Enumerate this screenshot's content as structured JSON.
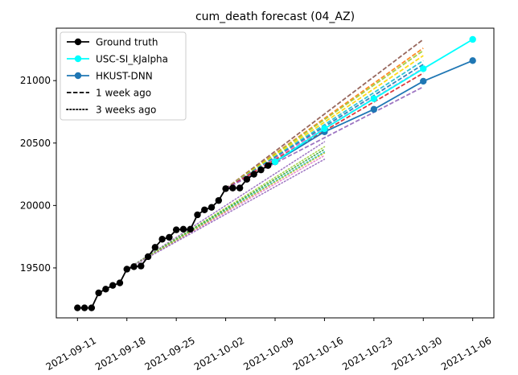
{
  "chart_data": {
    "type": "line",
    "title": "cum_death forecast (04_AZ)",
    "xlabel": "",
    "ylabel": "",
    "x_ticks": [
      "2021-09-11",
      "2021-09-18",
      "2021-09-25",
      "2021-10-02",
      "2021-10-09",
      "2021-10-16",
      "2021-10-23",
      "2021-10-30",
      "2021-11-06"
    ],
    "y_ticks": [
      19500,
      20000,
      20500,
      21000
    ],
    "xlim": [
      "2021-09-08",
      "2021-11-09"
    ],
    "ylim": [
      19100,
      21420
    ],
    "grid": false,
    "legend_placement": "top-left",
    "legend": [
      {
        "label": "Ground truth",
        "style": "solid-marker",
        "color": "#000000"
      },
      {
        "label": "USC-SI_kJalpha",
        "style": "solid-marker",
        "color": "#00ffff"
      },
      {
        "label": "HKUST-DNN",
        "style": "solid-marker",
        "color": "#1f77b4"
      },
      {
        "label": "1 week ago",
        "style": "dashed",
        "color": "#000000"
      },
      {
        "label": "3 weeks ago",
        "style": "dotted",
        "color": "#000000"
      }
    ],
    "series": [
      {
        "name": "Ground truth",
        "color": "#000000",
        "marker": true,
        "points": [
          [
            "2021-09-11",
            19180
          ],
          [
            "2021-09-12",
            19180
          ],
          [
            "2021-09-13",
            19180
          ],
          [
            "2021-09-14",
            19300
          ],
          [
            "2021-09-15",
            19330
          ],
          [
            "2021-09-16",
            19360
          ],
          [
            "2021-09-17",
            19380
          ],
          [
            "2021-09-18",
            19490
          ],
          [
            "2021-09-19",
            19510
          ],
          [
            "2021-09-20",
            19515
          ],
          [
            "2021-09-21",
            19590
          ],
          [
            "2021-09-22",
            19665
          ],
          [
            "2021-09-23",
            19730
          ],
          [
            "2021-09-24",
            19745
          ],
          [
            "2021-09-25",
            19805
          ],
          [
            "2021-09-26",
            19810
          ],
          [
            "2021-09-27",
            19810
          ],
          [
            "2021-09-28",
            19925
          ],
          [
            "2021-09-29",
            19965
          ],
          [
            "2021-09-30",
            19985
          ],
          [
            "2021-10-01",
            20040
          ],
          [
            "2021-10-02",
            20135
          ],
          [
            "2021-10-03",
            20140
          ],
          [
            "2021-10-04",
            20140
          ],
          [
            "2021-10-05",
            20210
          ],
          [
            "2021-10-06",
            20250
          ],
          [
            "2021-10-07",
            20285
          ],
          [
            "2021-10-08",
            20320
          ],
          [
            "2021-10-09",
            20350
          ]
        ]
      },
      {
        "name": "USC-SI_kJalpha",
        "color": "#00ffff",
        "marker": true,
        "points": [
          [
            "2021-10-09",
            20350
          ],
          [
            "2021-10-16",
            20615
          ],
          [
            "2021-10-23",
            20855
          ],
          [
            "2021-10-30",
            21095
          ],
          [
            "2021-11-06",
            21330
          ]
        ]
      },
      {
        "name": "HKUST-DNN",
        "color": "#1f77b4",
        "marker": true,
        "points": [
          [
            "2021-10-09",
            20350
          ],
          [
            "2021-10-16",
            20590
          ],
          [
            "2021-10-23",
            20770
          ],
          [
            "2021-10-30",
            20995
          ],
          [
            "2021-11-06",
            21160
          ]
        ]
      }
    ],
    "forecasts_1_week_ago": [
      {
        "color": "#8c564b",
        "points": [
          [
            "2021-10-02",
            20135
          ],
          [
            "2021-10-30",
            21330
          ]
        ]
      },
      {
        "color": "#ff7f0e",
        "points": [
          [
            "2021-10-02",
            20135
          ],
          [
            "2021-10-30",
            21260
          ]
        ]
      },
      {
        "color": "#9acd32",
        "points": [
          [
            "2021-10-02",
            20135
          ],
          [
            "2021-10-30",
            21240
          ]
        ]
      },
      {
        "color": "#ffd700",
        "points": [
          [
            "2021-10-02",
            20135
          ],
          [
            "2021-10-30",
            21200
          ]
        ]
      },
      {
        "color": "#17becf",
        "points": [
          [
            "2021-10-02",
            20135
          ],
          [
            "2021-10-30",
            21160
          ]
        ]
      },
      {
        "color": "#1f77b4",
        "points": [
          [
            "2021-10-02",
            20135
          ],
          [
            "2021-10-30",
            21130
          ]
        ]
      },
      {
        "color": "#e377c2",
        "points": [
          [
            "2021-10-02",
            20135
          ],
          [
            "2021-10-30",
            21100
          ]
        ]
      },
      {
        "color": "#d62728",
        "points": [
          [
            "2021-10-02",
            20135
          ],
          [
            "2021-10-30",
            21060
          ]
        ]
      },
      {
        "color": "#9467bd",
        "points": [
          [
            "2021-10-02",
            20135
          ],
          [
            "2021-10-30",
            20950
          ]
        ]
      }
    ],
    "forecasts_3_weeks_ago": [
      {
        "color": "#9467bd",
        "points": [
          [
            "2021-09-18",
            19490
          ],
          [
            "2021-10-16",
            20510
          ]
        ]
      },
      {
        "color": "#9acd32",
        "points": [
          [
            "2021-09-18",
            19490
          ],
          [
            "2021-10-16",
            20470
          ]
        ]
      },
      {
        "color": "#2ca02c",
        "points": [
          [
            "2021-09-18",
            19490
          ],
          [
            "2021-10-16",
            20450
          ]
        ]
      },
      {
        "color": "#17becf",
        "points": [
          [
            "2021-09-18",
            19490
          ],
          [
            "2021-10-16",
            20430
          ]
        ]
      },
      {
        "color": "#e377c2",
        "points": [
          [
            "2021-09-18",
            19490
          ],
          [
            "2021-10-16",
            20400
          ]
        ]
      },
      {
        "color": "#bcbd22",
        "points": [
          [
            "2021-09-18",
            19490
          ],
          [
            "2021-10-16",
            20420
          ]
        ]
      },
      {
        "color": "#9467bd",
        "points": [
          [
            "2021-09-18",
            19490
          ],
          [
            "2021-10-16",
            20370
          ]
        ]
      }
    ]
  }
}
